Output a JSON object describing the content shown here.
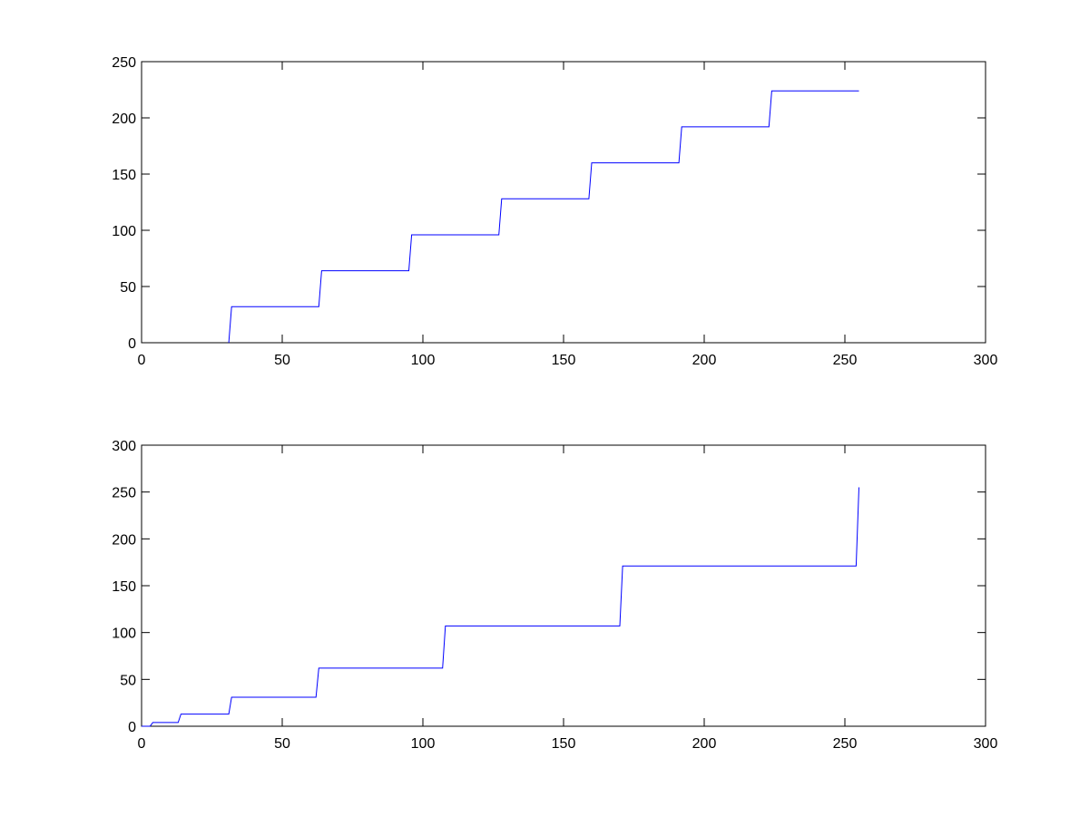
{
  "chart_data": [
    {
      "type": "line",
      "title": "",
      "xlabel": "",
      "ylabel": "",
      "xlim": [
        0,
        300
      ],
      "ylim": [
        0,
        250
      ],
      "xticks": [
        "0",
        "50",
        "100",
        "150",
        "200",
        "250",
        "300"
      ],
      "yticks": [
        "0",
        "50",
        "100",
        "150",
        "200",
        "250"
      ],
      "grid": false,
      "series": [
        {
          "color": "#0000ff",
          "x": [
            31,
            32,
            63,
            64,
            95,
            96,
            127,
            128,
            159,
            160,
            191,
            192,
            223,
            224,
            255
          ],
          "y": [
            0,
            32,
            32,
            64,
            64,
            96,
            96,
            128,
            128,
            160,
            160,
            192,
            192,
            224,
            224
          ]
        }
      ]
    },
    {
      "type": "line",
      "title": "",
      "xlabel": "",
      "ylabel": "",
      "xlim": [
        0,
        300
      ],
      "ylim": [
        0,
        300
      ],
      "xticks": [
        "0",
        "50",
        "100",
        "150",
        "200",
        "250",
        "300"
      ],
      "yticks": [
        "0",
        "50",
        "100",
        "150",
        "200",
        "250",
        "300"
      ],
      "grid": false,
      "series": [
        {
          "color": "#0000ff",
          "x": [
            0,
            3,
            4,
            13,
            14,
            31,
            32,
            62,
            63,
            107,
            108,
            170,
            171,
            254,
            255
          ],
          "y": [
            0,
            0,
            4,
            4,
            13,
            13,
            31,
            31,
            62,
            62,
            107,
            107,
            171,
            171,
            255
          ]
        }
      ]
    }
  ]
}
